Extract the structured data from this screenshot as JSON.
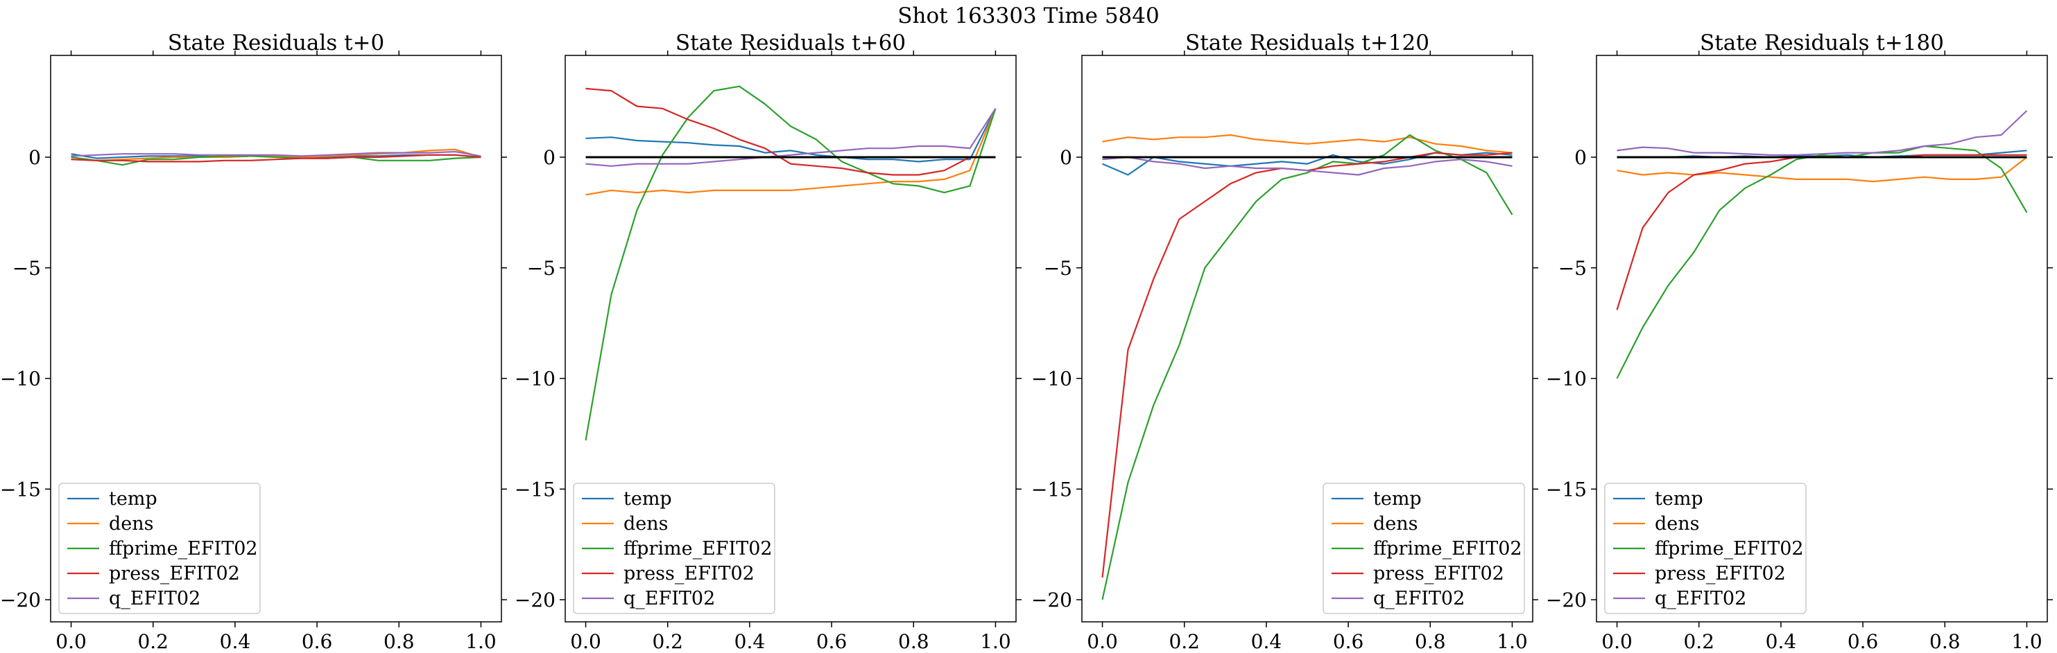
{
  "figure": {
    "suptitle": "Shot 163303   Time 5840"
  },
  "colors": {
    "temp": "#1f77b4",
    "dens": "#ff7f0e",
    "ffprime_EFIT02": "#2ca02c",
    "press_EFIT02": "#d62728",
    "q_EFIT02": "#9467bd",
    "zero_line": "#000000"
  },
  "chart_data": [
    {
      "type": "line",
      "title": "State Residuals t+0",
      "xlabel": "",
      "ylabel": "",
      "xlim": [
        -0.05,
        1.05
      ],
      "ylim": [
        -21.0,
        4.6
      ],
      "xticks": [
        0.0,
        0.2,
        0.4,
        0.6,
        0.8,
        1.0
      ],
      "xtick_labels": [
        "0.0",
        "0.2",
        "0.4",
        "0.6",
        "0.8",
        "1.0"
      ],
      "yticks": [
        0,
        -5,
        -10,
        -15,
        -20
      ],
      "ytick_labels": [
        "0",
        "−5",
        "−10",
        "−15",
        "−20"
      ],
      "show_zero_line": false,
      "legend": {
        "loc": "lower-left",
        "entries": [
          "temp",
          "dens",
          "ffprime_EFIT02",
          "press_EFIT02",
          "q_EFIT02"
        ]
      },
      "x": [
        0.0,
        0.0625,
        0.125,
        0.1875,
        0.25,
        0.3125,
        0.375,
        0.4375,
        0.5,
        0.5625,
        0.625,
        0.6875,
        0.75,
        0.8125,
        0.875,
        0.9375,
        1.0
      ],
      "series": [
        {
          "name": "temp",
          "values": [
            0.15,
            -0.05,
            0.0,
            0.05,
            0.05,
            0.05,
            0.0,
            0.05,
            0.05,
            0.0,
            0.0,
            0.05,
            0.05,
            0.1,
            0.1,
            0.1,
            0.0
          ]
        },
        {
          "name": "dens",
          "values": [
            -0.1,
            -0.15,
            -0.1,
            -0.05,
            0.0,
            0.0,
            0.0,
            0.05,
            0.05,
            0.0,
            0.05,
            0.1,
            0.15,
            0.2,
            0.3,
            0.35,
            0.0
          ]
        },
        {
          "name": "ffprime_EFIT02",
          "values": [
            0.0,
            -0.15,
            -0.35,
            -0.1,
            -0.1,
            0.0,
            0.05,
            0.05,
            0.0,
            -0.05,
            -0.05,
            0.0,
            -0.15,
            -0.15,
            -0.15,
            -0.05,
            0.0
          ]
        },
        {
          "name": "press_EFIT02",
          "values": [
            -0.1,
            -0.15,
            -0.15,
            -0.2,
            -0.2,
            -0.2,
            -0.15,
            -0.15,
            -0.1,
            -0.05,
            -0.05,
            0.0,
            0.0,
            0.05,
            0.1,
            0.1,
            0.0
          ]
        },
        {
          "name": "q_EFIT02",
          "values": [
            0.05,
            0.1,
            0.15,
            0.15,
            0.15,
            0.1,
            0.1,
            0.1,
            0.1,
            0.05,
            0.1,
            0.15,
            0.2,
            0.2,
            0.2,
            0.25,
            0.05
          ]
        }
      ]
    },
    {
      "type": "line",
      "title": "State Residuals t+60",
      "xlabel": "",
      "ylabel": "",
      "xlim": [
        -0.05,
        1.05
      ],
      "ylim": [
        -21.0,
        4.6
      ],
      "xticks": [
        0.0,
        0.2,
        0.4,
        0.6,
        0.8,
        1.0
      ],
      "xtick_labels": [
        "0.0",
        "0.2",
        "0.4",
        "0.6",
        "0.8",
        "1.0"
      ],
      "yticks": [
        0,
        -5,
        -10,
        -15,
        -20
      ],
      "ytick_labels": [
        "0",
        "−5",
        "−10",
        "−15",
        "−20"
      ],
      "show_zero_line": true,
      "legend": {
        "loc": "lower-left",
        "entries": [
          "temp",
          "dens",
          "ffprime_EFIT02",
          "press_EFIT02",
          "q_EFIT02"
        ]
      },
      "x": [
        0.0,
        0.0625,
        0.125,
        0.1875,
        0.25,
        0.3125,
        0.375,
        0.4375,
        0.5,
        0.5625,
        0.625,
        0.6875,
        0.75,
        0.8125,
        0.875,
        0.9375,
        1.0
      ],
      "series": [
        {
          "name": "temp",
          "values": [
            0.85,
            0.9,
            0.75,
            0.7,
            0.65,
            0.55,
            0.5,
            0.2,
            0.3,
            0.1,
            0.0,
            -0.1,
            -0.1,
            -0.2,
            -0.1,
            -0.1,
            2.2
          ]
        },
        {
          "name": "dens",
          "values": [
            -1.7,
            -1.5,
            -1.6,
            -1.5,
            -1.6,
            -1.5,
            -1.5,
            -1.5,
            -1.5,
            -1.4,
            -1.3,
            -1.2,
            -1.1,
            -1.1,
            -1.0,
            -0.6,
            2.2
          ]
        },
        {
          "name": "ffprime_EFIT02",
          "values": [
            -12.8,
            -6.2,
            -2.4,
            0.1,
            1.8,
            3.0,
            3.2,
            2.4,
            1.4,
            0.8,
            -0.2,
            -0.7,
            -1.2,
            -1.3,
            -1.6,
            -1.3,
            2.2
          ]
        },
        {
          "name": "press_EFIT02",
          "values": [
            3.1,
            3.0,
            2.3,
            2.2,
            1.7,
            1.3,
            0.8,
            0.4,
            -0.3,
            -0.4,
            -0.5,
            -0.7,
            -0.8,
            -0.8,
            -0.6,
            0.0,
            0.0
          ]
        },
        {
          "name": "q_EFIT02",
          "values": [
            -0.3,
            -0.4,
            -0.3,
            -0.3,
            -0.3,
            -0.2,
            -0.1,
            0.0,
            0.1,
            0.2,
            0.3,
            0.4,
            0.4,
            0.5,
            0.5,
            0.4,
            2.2
          ]
        }
      ]
    },
    {
      "type": "line",
      "title": "State Residuals t+120",
      "xlabel": "",
      "ylabel": "",
      "xlim": [
        -0.05,
        1.05
      ],
      "ylim": [
        -21.0,
        4.6
      ],
      "xticks": [
        0.0,
        0.2,
        0.4,
        0.6,
        0.8,
        1.0
      ],
      "xtick_labels": [
        "0.0",
        "0.2",
        "0.4",
        "0.6",
        "0.8",
        "1.0"
      ],
      "yticks": [
        0,
        -5,
        -10,
        -15,
        -20
      ],
      "ytick_labels": [
        "0",
        "−5",
        "−10",
        "−15",
        "−20"
      ],
      "show_zero_line": true,
      "legend": {
        "loc": "lower-right",
        "entries": [
          "temp",
          "dens",
          "ffprime_EFIT02",
          "press_EFIT02",
          "q_EFIT02"
        ]
      },
      "x": [
        0.0,
        0.0625,
        0.125,
        0.1875,
        0.25,
        0.3125,
        0.375,
        0.4375,
        0.5,
        0.5625,
        0.625,
        0.6875,
        0.75,
        0.8125,
        0.875,
        0.9375,
        1.0
      ],
      "series": [
        {
          "name": "temp",
          "values": [
            -0.3,
            -0.8,
            0.0,
            -0.2,
            -0.3,
            -0.4,
            -0.3,
            -0.2,
            -0.3,
            0.1,
            -0.2,
            -0.3,
            -0.1,
            0.2,
            0.1,
            0.2,
            0.1
          ]
        },
        {
          "name": "dens",
          "values": [
            0.7,
            0.9,
            0.8,
            0.9,
            0.9,
            1.0,
            0.8,
            0.7,
            0.6,
            0.7,
            0.8,
            0.7,
            0.9,
            0.6,
            0.5,
            0.3,
            0.2
          ]
        },
        {
          "name": "ffprime_EFIT02",
          "values": [
            -20.0,
            -14.7,
            -11.2,
            -8.5,
            -5.0,
            -3.5,
            -2.0,
            -1.0,
            -0.7,
            -0.2,
            -0.3,
            0.1,
            1.0,
            0.3,
            -0.1,
            -0.7,
            -2.6
          ]
        },
        {
          "name": "press_EFIT02",
          "values": [
            -19.0,
            -8.7,
            -5.5,
            -2.8,
            -2.0,
            -1.2,
            -0.7,
            -0.5,
            -0.6,
            -0.4,
            -0.3,
            -0.2,
            0.0,
            0.2,
            0.1,
            0.1,
            0.2
          ]
        },
        {
          "name": "q_EFIT02",
          "values": [
            -0.1,
            0.0,
            -0.2,
            -0.3,
            -0.5,
            -0.4,
            -0.5,
            -0.5,
            -0.6,
            -0.7,
            -0.8,
            -0.5,
            -0.4,
            -0.2,
            -0.1,
            -0.2,
            -0.4
          ]
        }
      ]
    },
    {
      "type": "line",
      "title": "State Residuals t+180",
      "xlabel": "",
      "ylabel": "",
      "xlim": [
        -0.05,
        1.05
      ],
      "ylim": [
        -21.0,
        4.6
      ],
      "xticks": [
        0.0,
        0.2,
        0.4,
        0.6,
        0.8,
        1.0
      ],
      "xtick_labels": [
        "0.0",
        "0.2",
        "0.4",
        "0.6",
        "0.8",
        "1.0"
      ],
      "yticks": [
        0,
        -5,
        -10,
        -15,
        -20
      ],
      "ytick_labels": [
        "0",
        "−5",
        "−10",
        "−15",
        "−20"
      ],
      "show_zero_line": true,
      "legend": {
        "loc": "lower-left",
        "entries": [
          "temp",
          "dens",
          "ffprime_EFIT02",
          "press_EFIT02",
          "q_EFIT02"
        ]
      },
      "x": [
        0.0,
        0.0625,
        0.125,
        0.1875,
        0.25,
        0.3125,
        0.375,
        0.4375,
        0.5,
        0.5625,
        0.625,
        0.6875,
        0.75,
        0.8125,
        0.875,
        0.9375,
        1.0
      ],
      "series": [
        {
          "name": "temp",
          "values": [
            0.0,
            0.0,
            0.0,
            0.05,
            0.0,
            0.05,
            0.0,
            0.05,
            0.05,
            0.1,
            0.0,
            0.05,
            0.1,
            0.1,
            0.1,
            0.2,
            0.3
          ]
        },
        {
          "name": "dens",
          "values": [
            -0.6,
            -0.8,
            -0.7,
            -0.8,
            -0.7,
            -0.8,
            -0.9,
            -1.0,
            -1.0,
            -1.0,
            -1.1,
            -1.0,
            -0.9,
            -1.0,
            -1.0,
            -0.9,
            0.0
          ]
        },
        {
          "name": "ffprime_EFIT02",
          "values": [
            -10.0,
            -7.7,
            -5.8,
            -4.3,
            -2.4,
            -1.4,
            -0.8,
            -0.1,
            0.1,
            0.0,
            0.2,
            0.2,
            0.5,
            0.4,
            0.3,
            -0.5,
            -2.5
          ]
        },
        {
          "name": "press_EFIT02",
          "values": [
            -6.9,
            -3.2,
            -1.6,
            -0.8,
            -0.6,
            -0.3,
            -0.2,
            0.0,
            0.0,
            0.0,
            0.0,
            0.0,
            0.1,
            0.1,
            0.1,
            0.1,
            0.1
          ]
        },
        {
          "name": "q_EFIT02",
          "values": [
            0.3,
            0.45,
            0.4,
            0.2,
            0.2,
            0.15,
            0.1,
            0.1,
            0.15,
            0.2,
            0.2,
            0.3,
            0.5,
            0.6,
            0.9,
            1.0,
            2.1
          ]
        }
      ]
    }
  ]
}
